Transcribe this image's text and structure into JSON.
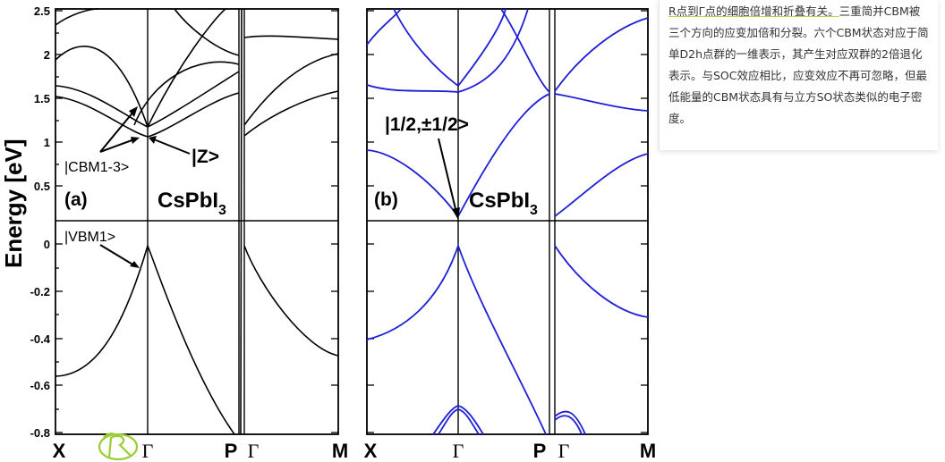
{
  "figure": {
    "ylabel": "Energy [eV]",
    "panel_a": {
      "label": "(a)",
      "material": "CsPbI",
      "material_sub": "3",
      "yticks": [
        "2.5",
        "2",
        "1.5",
        "1",
        "0.5",
        "0",
        "-0.2",
        "-0.4",
        "-0.6",
        "-0.8"
      ],
      "xticks": [
        "X",
        "Γ",
        "P",
        "Γ",
        "M"
      ],
      "annotations": [
        "|CBM1-3>",
        "|Z>",
        "|VBM1>"
      ]
    },
    "panel_b": {
      "label": "(b)",
      "material": "CsPbI",
      "material_sub": "3",
      "xticks": [
        "X",
        "Γ",
        "P",
        "Γ",
        "M"
      ],
      "annotations": [
        "|1/2,±1/2>"
      ]
    },
    "handwritten_mark": "R",
    "colors": {
      "panel_a_bands": "#000000",
      "panel_b_bands": "#1f1fd6",
      "handwriting": "#9acd32"
    }
  },
  "note": {
    "highlight": "R点到Γ点的细胞倍增和折叠有关。",
    "body": "三重简并CBM被三个方向的应变加倍和分裂。六个CBM状态对应于简单D2h点群的一维表示，其产生对应双群的2倍退化表示。与SOC效应相比，应变效应不再可忽略，但最低能量的CBM状态具有与立方SO状态类似的电子密度。"
  }
}
